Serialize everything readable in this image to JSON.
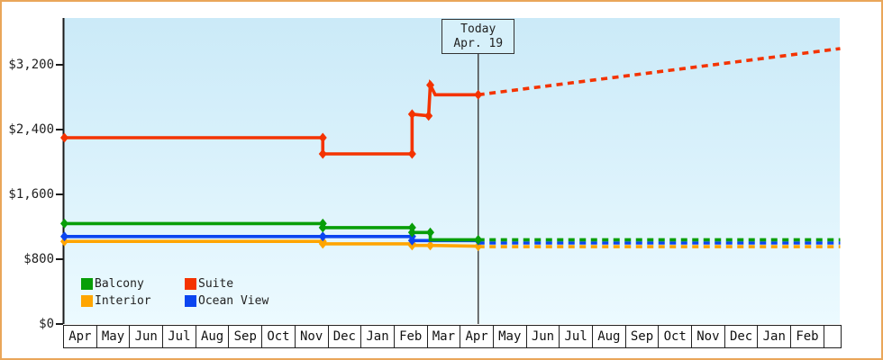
{
  "chart_data": {
    "type": "line",
    "description": "Cabin price history and forecast by category",
    "x_labels": [
      "Apr",
      "May",
      "Jun",
      "Jul",
      "Aug",
      "Sep",
      "Oct",
      "Nov",
      "Dec",
      "Jan",
      "Feb",
      "Mar",
      "Apr",
      "May",
      "Jun",
      "Jul",
      "Aug",
      "Sep",
      "Oct",
      "Nov",
      "Dec",
      "Jan",
      "Feb"
    ],
    "y_ticks": [
      0,
      800,
      1600,
      2400,
      3200
    ],
    "y_tick_labels": [
      "$0",
      "$800",
      "$1,600",
      "$2,400",
      "$3,200"
    ],
    "ylim": [
      0,
      3780
    ],
    "grid": false,
    "legend_position": "bottom-left",
    "today": {
      "label_line1": "Today",
      "label_line2": "Apr. 19",
      "month_index": 12
    },
    "series": [
      {
        "name": "Interior",
        "color": "#ffa500",
        "points": [
          [
            -0.6,
            1020,
            1
          ],
          [
            7.3,
            1020,
            1
          ],
          [
            7.3,
            990,
            1
          ],
          [
            10,
            990,
            1
          ],
          [
            10,
            970,
            1
          ],
          [
            10.55,
            970,
            1
          ],
          [
            12,
            960,
            1
          ]
        ],
        "projection": [
          [
            12,
            955
          ],
          [
            23,
            955
          ]
        ]
      },
      {
        "name": "Ocean View",
        "color": "#0b45f0",
        "points": [
          [
            -0.6,
            1080,
            1
          ],
          [
            7.3,
            1080,
            1
          ],
          [
            10,
            1080,
            1
          ],
          [
            10,
            1030,
            1
          ],
          [
            12,
            1030,
            1
          ]
        ],
        "projection": [
          [
            12,
            1000
          ],
          [
            23,
            1000
          ]
        ]
      },
      {
        "name": "Balcony",
        "color": "#089e08",
        "points": [
          [
            -0.6,
            1240,
            1
          ],
          [
            7.3,
            1240,
            1
          ],
          [
            7.3,
            1190,
            1
          ],
          [
            10,
            1190,
            1
          ],
          [
            10,
            1130,
            1
          ],
          [
            10.55,
            1130,
            1
          ],
          [
            10.55,
            1040,
            0
          ],
          [
            12,
            1040,
            1
          ]
        ],
        "projection": [
          [
            12,
            1040
          ],
          [
            23,
            1040
          ]
        ]
      },
      {
        "name": "Suite",
        "color": "#f43300",
        "points": [
          [
            -0.6,
            2300,
            1
          ],
          [
            7.3,
            2300,
            1
          ],
          [
            7.3,
            2100,
            1
          ],
          [
            10,
            2100,
            1
          ],
          [
            10,
            2590,
            1
          ],
          [
            10.5,
            2570,
            1
          ],
          [
            10.55,
            2950,
            1
          ],
          [
            10.7,
            2830,
            0
          ],
          [
            12,
            2830,
            1
          ]
        ],
        "projection": [
          [
            12,
            2830
          ],
          [
            23,
            3400
          ]
        ]
      }
    ],
    "legend": [
      {
        "label": "Balcony",
        "color": "#089e08"
      },
      {
        "label": "Suite",
        "color": "#f43300"
      },
      {
        "label": "Interior",
        "color": "#ffa500"
      },
      {
        "label": "Ocean View",
        "color": "#0b45f0"
      }
    ],
    "colors": {
      "frame_border": "#e9a65a",
      "axis": "#1a1a1a",
      "today_line": "#444444",
      "plot_bg_top": "#cbeaf8",
      "plot_bg_bottom": "#ecfaff"
    }
  }
}
